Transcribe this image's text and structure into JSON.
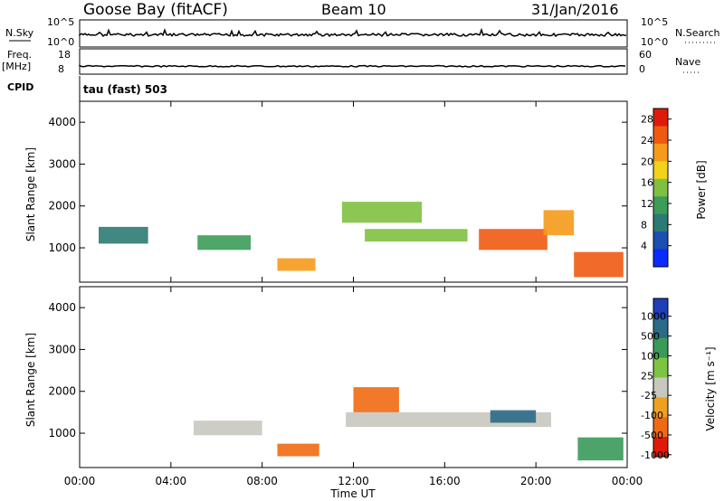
{
  "header": {
    "station": "Goose Bay (fitACF)",
    "beam": "Beam 10",
    "date": "31/Jan/2016"
  },
  "panels": {
    "nsky": {
      "left_label": "N.Sky",
      "left_ticks": [
        "10^5",
        "10^0"
      ],
      "right_ticks": [
        "10^5",
        "10^0"
      ],
      "right_label": "N.Search"
    },
    "freq": {
      "left_label_1": "Freq.",
      "left_label_2": "[MHz]",
      "left_ticks": [
        "18",
        "8"
      ],
      "right_ticks": [
        "60",
        "0"
      ],
      "right_label": "Nave"
    },
    "cpid": {
      "label": "CPID",
      "value": "tau (fast) 503"
    }
  },
  "xaxis": {
    "label": "Time UT",
    "ticks": [
      "00:00",
      "04:00",
      "08:00",
      "12:00",
      "16:00",
      "20:00",
      "00:00"
    ]
  },
  "power_panel": {
    "ylabel": "Slant Range [km]",
    "yticks": [
      "1000",
      "2000",
      "3000",
      "4000"
    ],
    "colorbar_label": "Power [dB]",
    "colorbar_ticks": [
      "4",
      "8",
      "12",
      "16",
      "20",
      "24",
      "28"
    ],
    "colors": [
      "#0a2bff",
      "#1b4fb0",
      "#2c7a74",
      "#3d9c58",
      "#80c040",
      "#f2d21a",
      "#f59a1a",
      "#ef5a12",
      "#e01a0a"
    ]
  },
  "velocity_panel": {
    "ylabel": "Slant Range [km]",
    "yticks": [
      "1000",
      "2000",
      "3000",
      "4000"
    ],
    "colorbar_label": "Velocity [m s⁻¹]",
    "colorbar_ticks": [
      "1000",
      "500",
      "100",
      "25",
      "-25",
      "-100",
      "-500",
      "-1000"
    ],
    "colors": [
      "#1d3fb8",
      "#2b6a88",
      "#3a9a5a",
      "#7cc443",
      "#c8c8c0",
      "#f0a020",
      "#ef6a12",
      "#e01a0a"
    ]
  },
  "chart_data": [
    {
      "type": "heatmap",
      "title": "Power",
      "x_range": [
        "00:00",
        "00:00"
      ],
      "y_range_km": [
        180,
        4500
      ],
      "colorbar": {
        "label": "Power [dB]",
        "range": [
          0,
          30
        ]
      },
      "regions": [
        {
          "x": [
            "00:50",
            "03:00"
          ],
          "y": [
            1100,
            1500
          ],
          "value": 9
        },
        {
          "x": [
            "05:10",
            "07:30"
          ],
          "y": [
            950,
            1300
          ],
          "value": 12
        },
        {
          "x": [
            "08:40",
            "10:20"
          ],
          "y": [
            450,
            750
          ],
          "value": 20
        },
        {
          "x": [
            "11:30",
            "15:00"
          ],
          "y": [
            1600,
            2100
          ],
          "value": 16
        },
        {
          "x": [
            "12:30",
            "17:00"
          ],
          "y": [
            1150,
            1450
          ],
          "value": 15
        },
        {
          "x": [
            "17:30",
            "20:30"
          ],
          "y": [
            950,
            1450
          ],
          "value": 26
        },
        {
          "x": [
            "20:20",
            "21:40"
          ],
          "y": [
            1300,
            1900
          ],
          "value": 20
        },
        {
          "x": [
            "21:40",
            "23:50"
          ],
          "y": [
            300,
            900
          ],
          "value": 24
        }
      ]
    },
    {
      "type": "heatmap",
      "title": "Velocity",
      "x_range": [
        "00:00",
        "00:00"
      ],
      "y_range_km": [
        180,
        4500
      ],
      "colorbar": {
        "label": "Velocity [m s⁻¹]",
        "range": [
          -1000,
          1000
        ]
      },
      "regions": [
        {
          "x": [
            "05:00",
            "08:00"
          ],
          "y": [
            950,
            1300
          ],
          "value": 0
        },
        {
          "x": [
            "08:40",
            "10:30"
          ],
          "y": [
            450,
            750
          ],
          "value": -300
        },
        {
          "x": [
            "11:40",
            "20:40"
          ],
          "y": [
            1150,
            1500
          ],
          "value": 0
        },
        {
          "x": [
            "12:00",
            "14:00"
          ],
          "y": [
            1500,
            2100
          ],
          "value": -400
        },
        {
          "x": [
            "18:00",
            "20:00"
          ],
          "y": [
            1250,
            1550
          ],
          "value": 600
        },
        {
          "x": [
            "21:50",
            "23:50"
          ],
          "y": [
            350,
            900
          ],
          "value": 120
        }
      ]
    }
  ]
}
